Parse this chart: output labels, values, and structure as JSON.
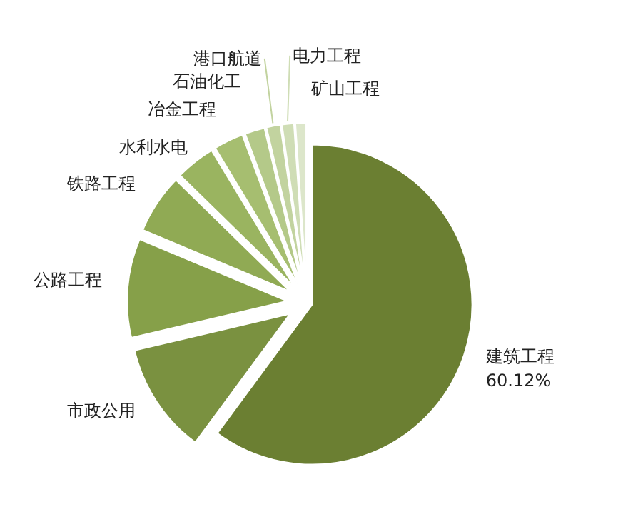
{
  "chart_data": {
    "type": "pie",
    "categories": [
      "建筑工程",
      "市政公用",
      "公路工程",
      "铁路工程",
      "水利水电",
      "冶金工程",
      "石油化工",
      "港口航道",
      "电力工程",
      "矿山工程"
    ],
    "values": [
      60.12,
      11.2,
      10,
      6,
      4,
      3,
      2,
      1.4,
      1.2,
      1.08
    ],
    "colors": [
      "#6b7f32",
      "#7a9140",
      "#86a049",
      "#90aa54",
      "#9ab460",
      "#a6be70",
      "#b4c989",
      "#c2d39f",
      "#cfddb5",
      "#dce6ca"
    ],
    "value_labels": [
      "60.12%",
      null,
      null,
      null,
      null,
      null,
      null,
      null,
      null,
      null
    ]
  }
}
